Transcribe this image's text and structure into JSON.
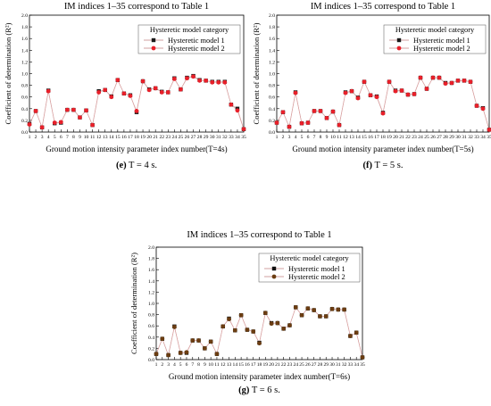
{
  "chart_data": [
    {
      "type": "line",
      "title": "IM indices 1–35 correspond to Table 1",
      "xlabel": "Ground motion intensity parameter index number(T=4s)",
      "ylabel": "Coefficient of determination (R²)",
      "caption_letter": "(e)",
      "caption_text": " T = 4 s.",
      "legend": {
        "title": "Hysteretic model category",
        "position": "top-right"
      },
      "x": [
        1,
        2,
        3,
        4,
        5,
        6,
        7,
        8,
        9,
        10,
        11,
        12,
        13,
        14,
        15,
        16,
        17,
        18,
        19,
        20,
        21,
        22,
        23,
        24,
        25,
        26,
        27,
        28,
        29,
        30,
        31,
        32,
        33,
        34,
        35
      ],
      "xlim": [
        1,
        35
      ],
      "ylim": [
        0,
        2.0
      ],
      "yticks": [
        "0.0",
        "0.2",
        "0.4",
        "0.6",
        "0.8",
        "1.0",
        "1.2",
        "1.4",
        "1.6",
        "1.8",
        "2.0"
      ],
      "series": [
        {
          "name": "Hysteretic model 1",
          "color": "#1a1a1a",
          "marker": "square",
          "values": [
            0.14,
            0.36,
            0.08,
            0.71,
            0.15,
            0.16,
            0.38,
            0.38,
            0.25,
            0.37,
            0.12,
            0.7,
            0.72,
            0.61,
            0.89,
            0.66,
            0.63,
            0.34,
            0.87,
            0.73,
            0.75,
            0.69,
            0.68,
            0.92,
            0.73,
            0.93,
            0.96,
            0.89,
            0.88,
            0.86,
            0.86,
            0.86,
            0.47,
            0.4,
            0.05
          ]
        },
        {
          "name": "Hysteretic model 2",
          "color": "#e8202a",
          "marker": "circle",
          "values": [
            0.13,
            0.36,
            0.08,
            0.7,
            0.16,
            0.17,
            0.38,
            0.38,
            0.25,
            0.37,
            0.12,
            0.68,
            0.72,
            0.6,
            0.89,
            0.66,
            0.62,
            0.36,
            0.87,
            0.72,
            0.75,
            0.68,
            0.68,
            0.91,
            0.73,
            0.92,
            0.95,
            0.88,
            0.88,
            0.85,
            0.85,
            0.85,
            0.47,
            0.37,
            0.05
          ]
        }
      ]
    },
    {
      "type": "line",
      "title": "IM indices 1–35 correspond to Table 1",
      "xlabel": "Ground motion intensity parameter index number(T=5s)",
      "ylabel": "Coefficient of determination (R²)",
      "caption_letter": "(f)",
      "caption_text": " T = 5 s.",
      "legend": {
        "title": "Hysteretic model category",
        "position": "top-right"
      },
      "x": [
        1,
        2,
        3,
        4,
        5,
        6,
        7,
        8,
        9,
        10,
        11,
        12,
        13,
        14,
        15,
        16,
        17,
        18,
        19,
        20,
        21,
        22,
        23,
        24,
        25,
        26,
        27,
        28,
        29,
        30,
        31,
        32,
        33,
        34,
        35
      ],
      "xlim": [
        1,
        35
      ],
      "ylim": [
        0,
        2.0
      ],
      "yticks": [
        "0.0",
        "0.2",
        "0.4",
        "0.6",
        "0.8",
        "1.0",
        "1.2",
        "1.4",
        "1.6",
        "1.8",
        "2.0"
      ],
      "series": [
        {
          "name": "Hysteretic model 1",
          "color": "#1a1a1a",
          "marker": "square",
          "values": [
            0.16,
            0.34,
            0.09,
            0.68,
            0.15,
            0.16,
            0.36,
            0.36,
            0.24,
            0.35,
            0.12,
            0.68,
            0.7,
            0.59,
            0.86,
            0.63,
            0.61,
            0.33,
            0.86,
            0.71,
            0.71,
            0.64,
            0.65,
            0.93,
            0.74,
            0.93,
            0.93,
            0.84,
            0.84,
            0.88,
            0.88,
            0.86,
            0.45,
            0.41,
            0.04
          ]
        },
        {
          "name": "Hysteretic model 2",
          "color": "#e8202a",
          "marker": "circle",
          "values": [
            0.16,
            0.34,
            0.09,
            0.67,
            0.15,
            0.16,
            0.36,
            0.36,
            0.24,
            0.35,
            0.12,
            0.67,
            0.7,
            0.58,
            0.86,
            0.63,
            0.6,
            0.32,
            0.86,
            0.7,
            0.71,
            0.64,
            0.65,
            0.93,
            0.74,
            0.93,
            0.93,
            0.83,
            0.84,
            0.88,
            0.88,
            0.86,
            0.45,
            0.4,
            0.04
          ]
        }
      ]
    },
    {
      "type": "line",
      "title": "IM indices 1–35 correspond to Table 1",
      "xlabel": "Ground motion intensity parameter index number(T=6s)",
      "ylabel": "Coefficient of determination (R²)",
      "caption_letter": "(g)",
      "caption_text": " T = 6 s.",
      "legend": {
        "title": "Hysteretic model category",
        "position": "top-right"
      },
      "x": [
        1,
        2,
        3,
        4,
        5,
        6,
        7,
        8,
        9,
        10,
        11,
        12,
        13,
        14,
        15,
        16,
        17,
        18,
        19,
        20,
        21,
        22,
        23,
        24,
        25,
        26,
        27,
        28,
        29,
        30,
        31,
        32,
        33,
        34,
        35
      ],
      "xlim": [
        1,
        35
      ],
      "ylim": [
        0,
        2.0
      ],
      "yticks": [
        "0.0",
        "0.2",
        "0.4",
        "0.6",
        "0.8",
        "1.0",
        "1.2",
        "1.4",
        "1.6",
        "1.8",
        "2.0"
      ],
      "series": [
        {
          "name": "Hysteretic model 1",
          "color": "#111111",
          "marker": "square",
          "values": [
            0.1,
            0.37,
            0.08,
            0.59,
            0.12,
            0.12,
            0.34,
            0.34,
            0.2,
            0.32,
            0.1,
            0.59,
            0.73,
            0.52,
            0.79,
            0.53,
            0.5,
            0.3,
            0.83,
            0.65,
            0.65,
            0.55,
            0.61,
            0.93,
            0.79,
            0.91,
            0.88,
            0.77,
            0.77,
            0.9,
            0.89,
            0.89,
            0.42,
            0.48,
            0.04
          ]
        },
        {
          "name": "Hysteretic model 2",
          "color": "#6b3d12",
          "marker": "circle",
          "values": [
            0.1,
            0.37,
            0.08,
            0.58,
            0.12,
            0.13,
            0.34,
            0.34,
            0.2,
            0.32,
            0.1,
            0.59,
            0.72,
            0.52,
            0.79,
            0.53,
            0.5,
            0.29,
            0.83,
            0.64,
            0.65,
            0.55,
            0.61,
            0.93,
            0.79,
            0.91,
            0.88,
            0.77,
            0.77,
            0.9,
            0.89,
            0.89,
            0.42,
            0.48,
            0.04
          ]
        }
      ]
    }
  ]
}
